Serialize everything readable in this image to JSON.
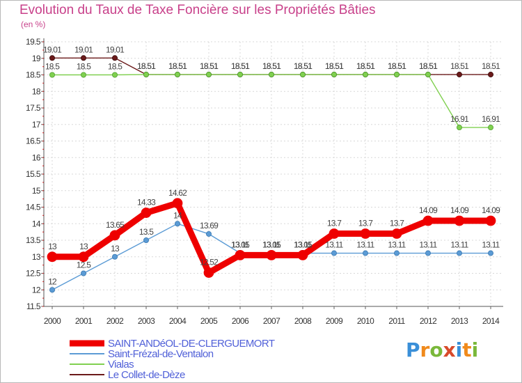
{
  "header": {
    "title": "Evolution du Taux de Taxe Foncière sur les Propriétés Bâties",
    "unit": "(en %)"
  },
  "logo": {
    "letters": [
      "P",
      "r",
      "o",
      "x",
      "i",
      "t",
      "i"
    ],
    "colors": [
      "#3a8fd8",
      "#f08a1c",
      "#7ab83a",
      "#d84a2a",
      "#3a8fd8",
      "#f08a1c",
      "#7ab83a"
    ]
  },
  "chart_data": {
    "type": "line",
    "title": "Evolution du Taux de Taxe Foncière sur les Propriétés Bâties",
    "ylabel": "(en %)",
    "xlabel": "",
    "ylim": [
      11.5,
      19.5
    ],
    "yticks": [
      "11.5",
      "12",
      "12.5",
      "13",
      "13.5",
      "14",
      "14.5",
      "15",
      "15.5",
      "16",
      "16.5",
      "17",
      "17.5",
      "18",
      "18.5",
      "19",
      "19.5"
    ],
    "x": [
      "2000",
      "2001",
      "2002",
      "2003",
      "2004",
      "2005",
      "2006",
      "2007",
      "2008",
      "2009",
      "2010",
      "2011",
      "2012",
      "2013",
      "2014"
    ],
    "series": [
      {
        "name": "SAINT-ANDéOL-DE-CLERGUEMORT",
        "color": "#ee0000",
        "values": [
          13,
          13,
          13.65,
          14.33,
          14.62,
          12.52,
          13.05,
          13.05,
          13.05,
          13.7,
          13.7,
          13.7,
          14.09,
          14.09,
          14.09
        ],
        "labels": [
          "13",
          "13",
          "13.65",
          "14.33",
          "14.62",
          "12.52",
          "13.05",
          "13.05",
          "13.05",
          "13.7",
          "13.7",
          "13.7",
          "14.09",
          "14.09",
          "14.09"
        ]
      },
      {
        "name": "Saint-Frézal-de-Ventalon",
        "color": "#5b9bd5",
        "values": [
          12,
          12.5,
          13,
          13.5,
          14,
          13.69,
          13.11,
          13.11,
          13.11,
          13.11,
          13.11,
          13.11,
          13.11,
          13.11,
          13.11
        ],
        "labels": [
          "12",
          "12.5",
          "13",
          "13.5",
          "14",
          "13.69",
          "13.11",
          "13.11",
          "13.11",
          "13.11",
          "13.11",
          "13.11",
          "13.11",
          "13.11",
          "13.11"
        ]
      },
      {
        "name": "Vialas",
        "color": "#80d050",
        "values": [
          18.5,
          18.5,
          18.5,
          18.51,
          18.51,
          18.51,
          18.51,
          18.51,
          18.51,
          18.51,
          18.51,
          18.51,
          18.51,
          16.91,
          16.91
        ],
        "labels": [
          "18.5",
          "18.5",
          "18.5",
          "18.51",
          "18.51",
          "18.51",
          "18.51",
          "18.51",
          "18.51",
          "18.51",
          "18.51",
          "18.51",
          "18.51",
          "16.91",
          "16.91"
        ]
      },
      {
        "name": "Le Collet-de-Dèze",
        "color": "#6b1a1a",
        "values": [
          19.01,
          19.01,
          19.01,
          18.51,
          18.51,
          18.51,
          18.51,
          18.51,
          18.51,
          18.51,
          18.51,
          18.51,
          18.51,
          18.51,
          18.51
        ],
        "labels": [
          "19.01",
          "19.01",
          "19.01",
          "18.51",
          "18.51",
          "18.51",
          "18.51",
          "18.51",
          "18.51",
          "18.51",
          "18.51",
          "18.51",
          "18.51",
          "18.51",
          "18.51"
        ]
      }
    ]
  }
}
